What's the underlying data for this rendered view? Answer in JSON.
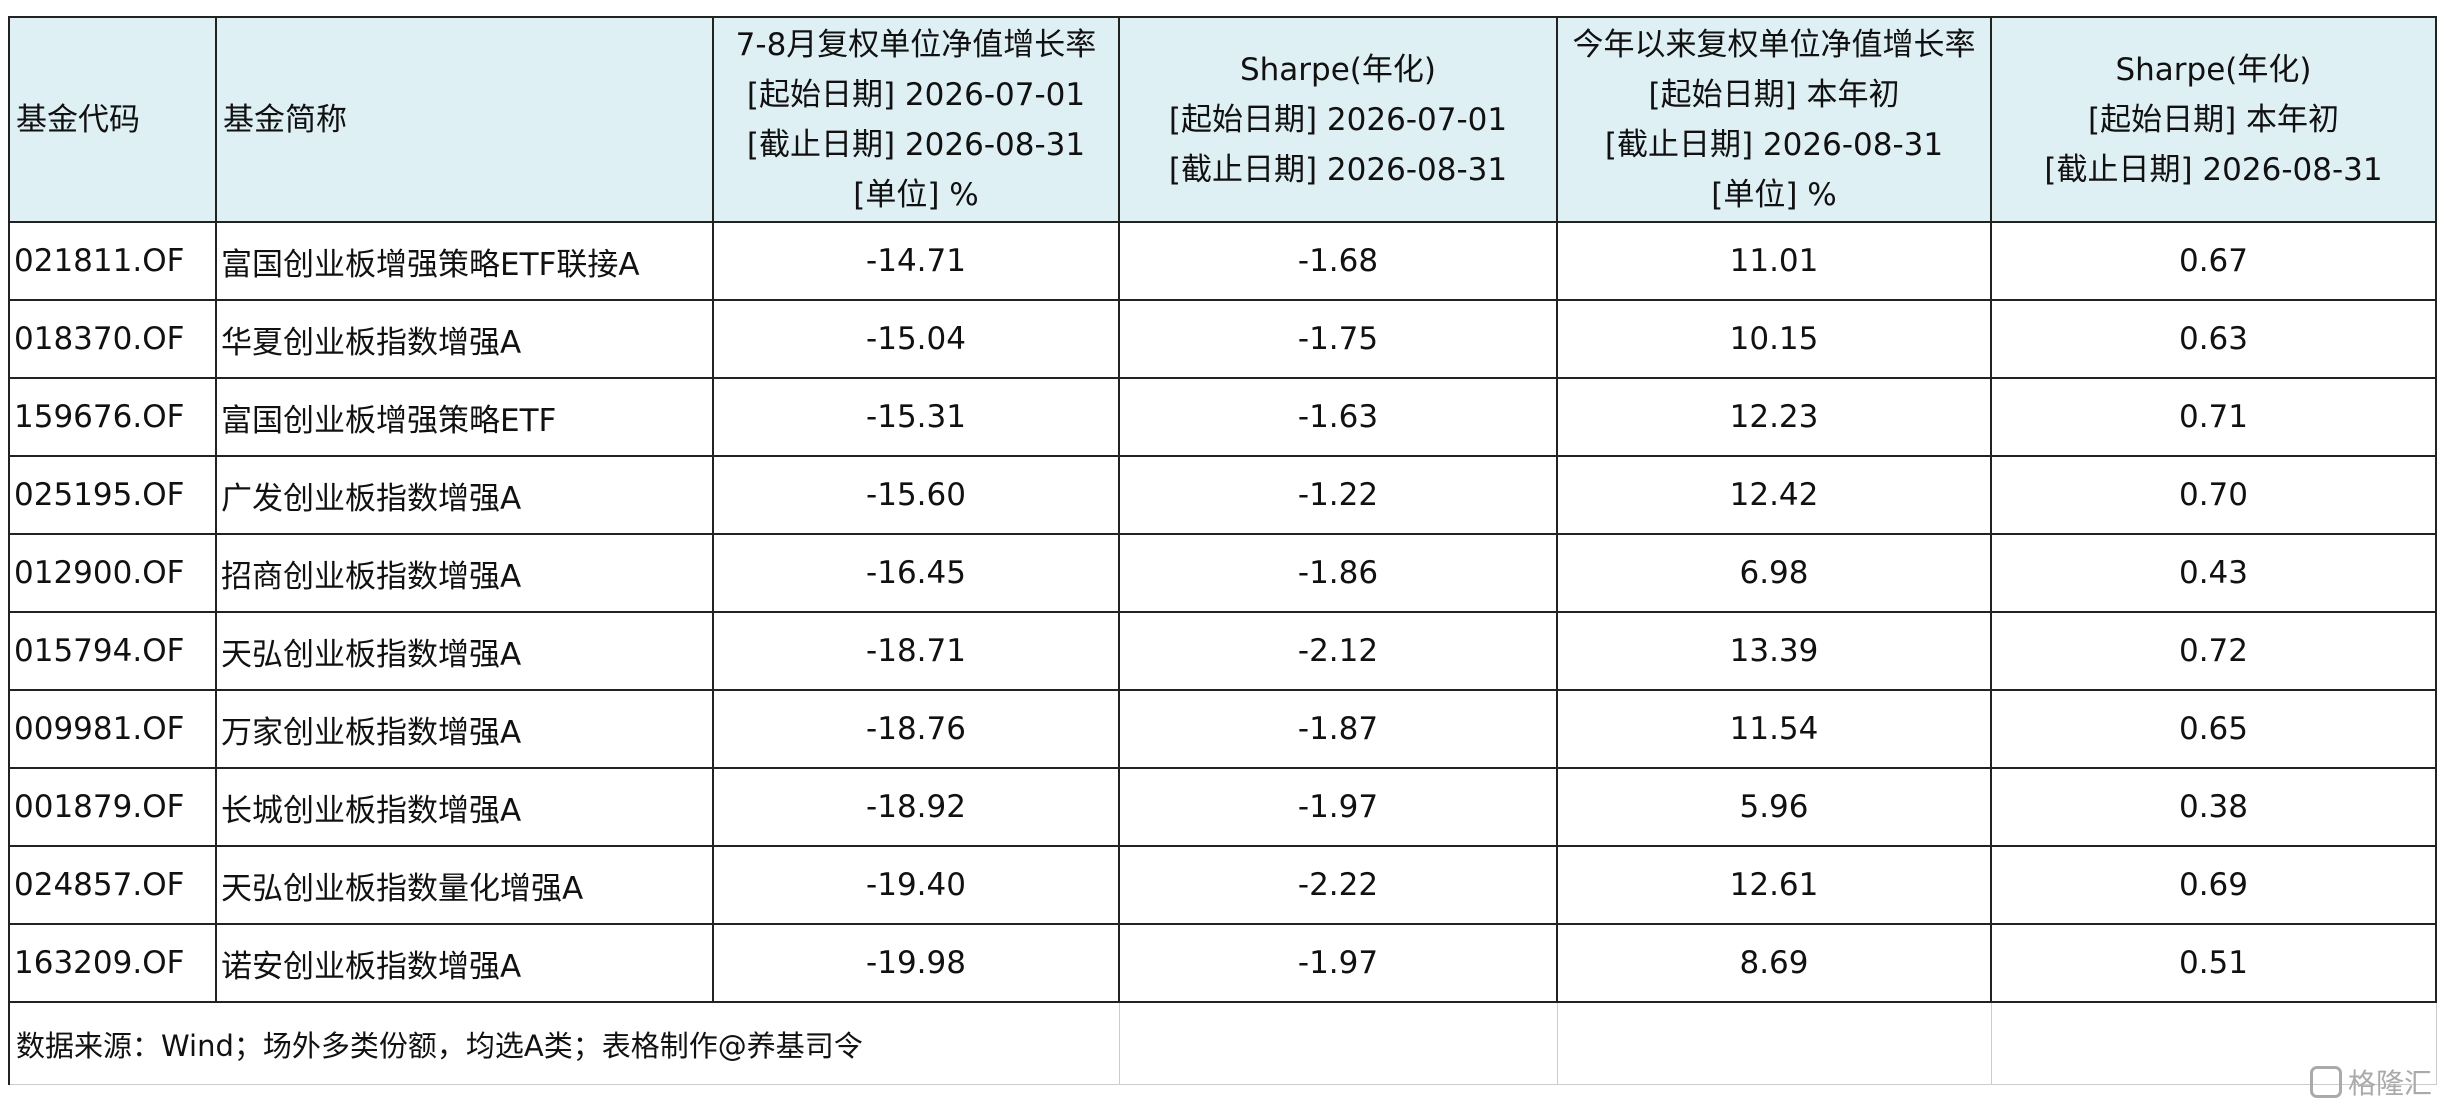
{
  "table": {
    "header": [
      [
        "基金代码"
      ],
      [
        "基金简称"
      ],
      [
        "7-8月复权单位净值增长率",
        "[起始日期] 2026-07-01",
        "[截止日期] 2026-08-31",
        "[单位] %"
      ],
      [
        "Sharpe(年化)",
        "[起始日期] 2026-07-01",
        "[截止日期] 2026-08-31"
      ],
      [
        "今年以来复权单位净值增长率",
        "[起始日期] 本年初",
        "[截止日期] 2026-08-31",
        "[单位] %"
      ],
      [
        "Sharpe(年化)",
        "[起始日期] 本年初",
        "[截止日期] 2026-08-31"
      ]
    ],
    "rows": [
      [
        "021811.OF",
        "富国创业板增强策略ETF联接A",
        "-14.71",
        "-1.68",
        "11.01",
        "0.67"
      ],
      [
        "018370.OF",
        "华夏创业板指数增强A",
        "-15.04",
        "-1.75",
        "10.15",
        "0.63"
      ],
      [
        "159676.OF",
        "富国创业板增强策略ETF",
        "-15.31",
        "-1.63",
        "12.23",
        "0.71"
      ],
      [
        "025195.OF",
        "广发创业板指数增强A",
        "-15.60",
        "-1.22",
        "12.42",
        "0.70"
      ],
      [
        "012900.OF",
        "招商创业板指数增强A",
        "-16.45",
        "-1.86",
        "6.98",
        "0.43"
      ],
      [
        "015794.OF",
        "天弘创业板指数增强A",
        "-18.71",
        "-2.12",
        "13.39",
        "0.72"
      ],
      [
        "009981.OF",
        "万家创业板指数增强A",
        "-18.76",
        "-1.87",
        "11.54",
        "0.65"
      ],
      [
        "001879.OF",
        "长城创业板指数增强A",
        "-18.92",
        "-1.97",
        "5.96",
        "0.38"
      ],
      [
        "024857.OF",
        "天弘创业板指数量化增强A",
        "-19.40",
        "-2.22",
        "12.61",
        "0.69"
      ],
      [
        "163209.OF",
        "诺安创业板指数增强A",
        "-19.98",
        "-1.97",
        "8.69",
        "0.51"
      ]
    ],
    "note": "数据来源：Wind；场外多类份额，均选A类；表格制作@养基司令"
  },
  "watermark": "格隆汇"
}
